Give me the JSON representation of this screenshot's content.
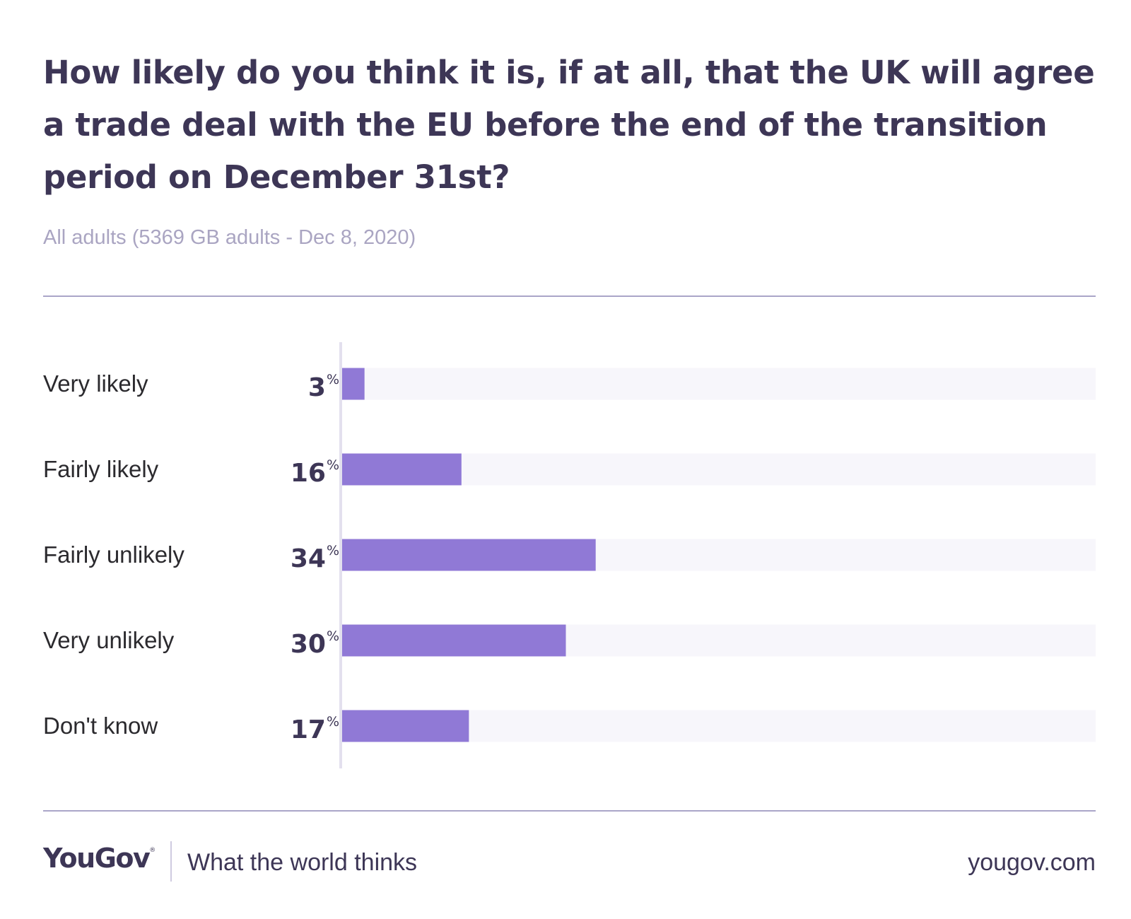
{
  "header": {
    "title": "How likely do you think it is, if at all, that the UK will agree a trade deal with the EU before the end of the transition period on December 31st?",
    "subtitle": "All adults (5369 GB adults - Dec 8, 2020)"
  },
  "chart_data": {
    "type": "bar",
    "orientation": "horizontal",
    "title": "How likely do you think it is, if at all, that the UK will agree a trade deal with the EU before the end of the transition period on December 31st?",
    "subtitle": "All adults (5369 GB adults - Dec 8, 2020)",
    "categories": [
      "Very likely",
      "Fairly likely",
      "Fairly unlikely",
      "Very unlikely",
      "Don't know"
    ],
    "values": [
      3,
      16,
      34,
      30,
      17
    ],
    "value_labels": [
      "3",
      "16",
      "34",
      "30",
      "17"
    ],
    "unit_symbol": "%",
    "xlim": [
      0,
      100
    ],
    "grid": false,
    "legend": "none",
    "colors": {
      "bar": "#9079d6",
      "track": "#f7f6fb",
      "axis": "#e3e0ee"
    }
  },
  "footer": {
    "logo": "YouGov",
    "logo_mark": "®",
    "tagline": "What the world thinks",
    "url": "yougov.com"
  },
  "colors": {
    "title": "#3d3656",
    "subtitle": "#aaa5c2",
    "rule": "#aaa5c8"
  }
}
